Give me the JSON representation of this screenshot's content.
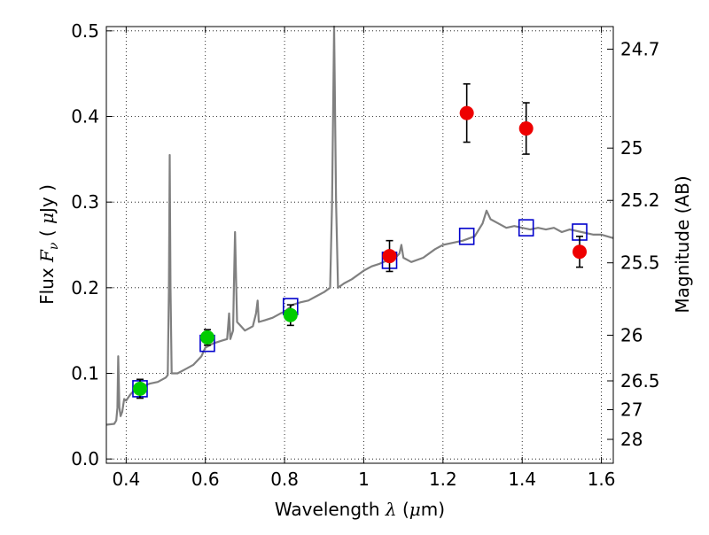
{
  "chart_data": {
    "type": "scatter",
    "xlabel": {
      "pre": "Wavelength  ",
      "var": "λ",
      "post": " (",
      "mu": "μ",
      "unit": "m)"
    },
    "ylabel": {
      "pre": "Flux  ",
      "var": "F",
      "sub": "ν",
      "post": "  ( ",
      "mu": "μ",
      "unit": "Jy )"
    },
    "y2label": "Magnitude (AB)",
    "xlim": [
      0.35,
      1.63
    ],
    "ylim": [
      -0.005,
      0.505
    ],
    "grid": true,
    "x_ticks": [
      {
        "value": 0.4,
        "label": "0.4"
      },
      {
        "value": 0.6,
        "label": "0.6"
      },
      {
        "value": 0.8,
        "label": "0.8"
      },
      {
        "value": 1.0,
        "label": "1"
      },
      {
        "value": 1.2,
        "label": "1.2"
      },
      {
        "value": 1.4,
        "label": "1.4"
      },
      {
        "value": 1.6,
        "label": "1.6"
      }
    ],
    "y_ticks": [
      {
        "value": 0.0,
        "label": "0.0"
      },
      {
        "value": 0.1,
        "label": "0.1"
      },
      {
        "value": 0.2,
        "label": "0.2"
      },
      {
        "value": 0.3,
        "label": "0.3"
      },
      {
        "value": 0.4,
        "label": "0.4"
      },
      {
        "value": 0.5,
        "label": "0.5"
      }
    ],
    "y2_ticks": [
      {
        "mag": 24.7,
        "label": "24.7"
      },
      {
        "mag": 25.0,
        "label": "25"
      },
      {
        "mag": 25.2,
        "label": "25.2"
      },
      {
        "mag": 25.5,
        "label": "25.5"
      },
      {
        "mag": 26.0,
        "label": "26"
      },
      {
        "mag": 26.5,
        "label": "26.5"
      },
      {
        "mag": 27.0,
        "label": "27"
      },
      {
        "mag": 28.0,
        "label": "28"
      }
    ],
    "spectrum": {
      "color": "#808080",
      "points": [
        [
          0.35,
          0.04
        ],
        [
          0.37,
          0.041
        ],
        [
          0.375,
          0.045
        ],
        [
          0.378,
          0.06
        ],
        [
          0.38,
          0.12
        ],
        [
          0.383,
          0.06
        ],
        [
          0.386,
          0.05
        ],
        [
          0.39,
          0.055
        ],
        [
          0.395,
          0.07
        ],
        [
          0.4,
          0.068
        ],
        [
          0.41,
          0.075
        ],
        [
          0.42,
          0.08
        ],
        [
          0.43,
          0.082
        ],
        [
          0.44,
          0.085
        ],
        [
          0.46,
          0.088
        ],
        [
          0.48,
          0.09
        ],
        [
          0.5,
          0.095
        ],
        [
          0.505,
          0.098
        ],
        [
          0.508,
          0.2
        ],
        [
          0.51,
          0.355
        ],
        [
          0.512,
          0.2
        ],
        [
          0.515,
          0.1
        ],
        [
          0.53,
          0.1
        ],
        [
          0.55,
          0.105
        ],
        [
          0.57,
          0.11
        ],
        [
          0.59,
          0.12
        ],
        [
          0.6,
          0.13
        ],
        [
          0.62,
          0.135
        ],
        [
          0.64,
          0.138
        ],
        [
          0.655,
          0.14
        ],
        [
          0.66,
          0.17
        ],
        [
          0.663,
          0.14
        ],
        [
          0.67,
          0.15
        ],
        [
          0.672,
          0.2
        ],
        [
          0.675,
          0.265
        ],
        [
          0.678,
          0.2
        ],
        [
          0.68,
          0.16
        ],
        [
          0.69,
          0.155
        ],
        [
          0.7,
          0.15
        ],
        [
          0.72,
          0.155
        ],
        [
          0.728,
          0.17
        ],
        [
          0.732,
          0.185
        ],
        [
          0.735,
          0.16
        ],
        [
          0.75,
          0.162
        ],
        [
          0.77,
          0.165
        ],
        [
          0.79,
          0.17
        ],
        [
          0.8,
          0.172
        ],
        [
          0.82,
          0.18
        ],
        [
          0.84,
          0.183
        ],
        [
          0.86,
          0.185
        ],
        [
          0.88,
          0.19
        ],
        [
          0.9,
          0.195
        ],
        [
          0.915,
          0.2
        ],
        [
          0.92,
          0.3
        ],
        [
          0.925,
          0.505
        ],
        [
          0.93,
          0.3
        ],
        [
          0.935,
          0.2
        ],
        [
          0.95,
          0.205
        ],
        [
          0.97,
          0.21
        ],
        [
          1.0,
          0.22
        ],
        [
          1.02,
          0.225
        ],
        [
          1.04,
          0.228
        ],
        [
          1.06,
          0.232
        ],
        [
          1.08,
          0.235
        ],
        [
          1.09,
          0.24
        ],
        [
          1.095,
          0.25
        ],
        [
          1.1,
          0.235
        ],
        [
          1.12,
          0.23
        ],
        [
          1.15,
          0.235
        ],
        [
          1.18,
          0.245
        ],
        [
          1.2,
          0.25
        ],
        [
          1.22,
          0.252
        ],
        [
          1.25,
          0.255
        ],
        [
          1.28,
          0.26
        ],
        [
          1.3,
          0.275
        ],
        [
          1.31,
          0.29
        ],
        [
          1.32,
          0.28
        ],
        [
          1.34,
          0.275
        ],
        [
          1.36,
          0.27
        ],
        [
          1.38,
          0.272
        ],
        [
          1.4,
          0.27
        ],
        [
          1.42,
          0.268
        ],
        [
          1.44,
          0.27
        ],
        [
          1.46,
          0.268
        ],
        [
          1.48,
          0.27
        ],
        [
          1.5,
          0.265
        ],
        [
          1.52,
          0.268
        ],
        [
          1.55,
          0.265
        ],
        [
          1.58,
          0.262
        ],
        [
          1.6,
          0.262
        ],
        [
          1.63,
          0.258
        ]
      ]
    },
    "model_points": {
      "color": "#0000cc",
      "points": [
        [
          0.435,
          0.082
        ],
        [
          0.605,
          0.135
        ],
        [
          0.815,
          0.178
        ],
        [
          1.065,
          0.232
        ],
        [
          1.26,
          0.26
        ],
        [
          1.41,
          0.27
        ],
        [
          1.545,
          0.265
        ]
      ]
    },
    "observed_optical": {
      "color": "#00cc00",
      "points": [
        {
          "x": 0.435,
          "y": 0.082,
          "err": 0.011
        },
        {
          "x": 0.605,
          "y": 0.142,
          "err": 0.009
        },
        {
          "x": 0.815,
          "y": 0.168,
          "err": 0.012
        }
      ]
    },
    "observed_nir": {
      "color": "#ee0000",
      "points": [
        {
          "x": 1.065,
          "y": 0.237,
          "err": 0.018
        },
        {
          "x": 1.26,
          "y": 0.404,
          "err": 0.034
        },
        {
          "x": 1.41,
          "y": 0.386,
          "err": 0.03
        },
        {
          "x": 1.545,
          "y": 0.242,
          "err": 0.018
        }
      ]
    }
  }
}
